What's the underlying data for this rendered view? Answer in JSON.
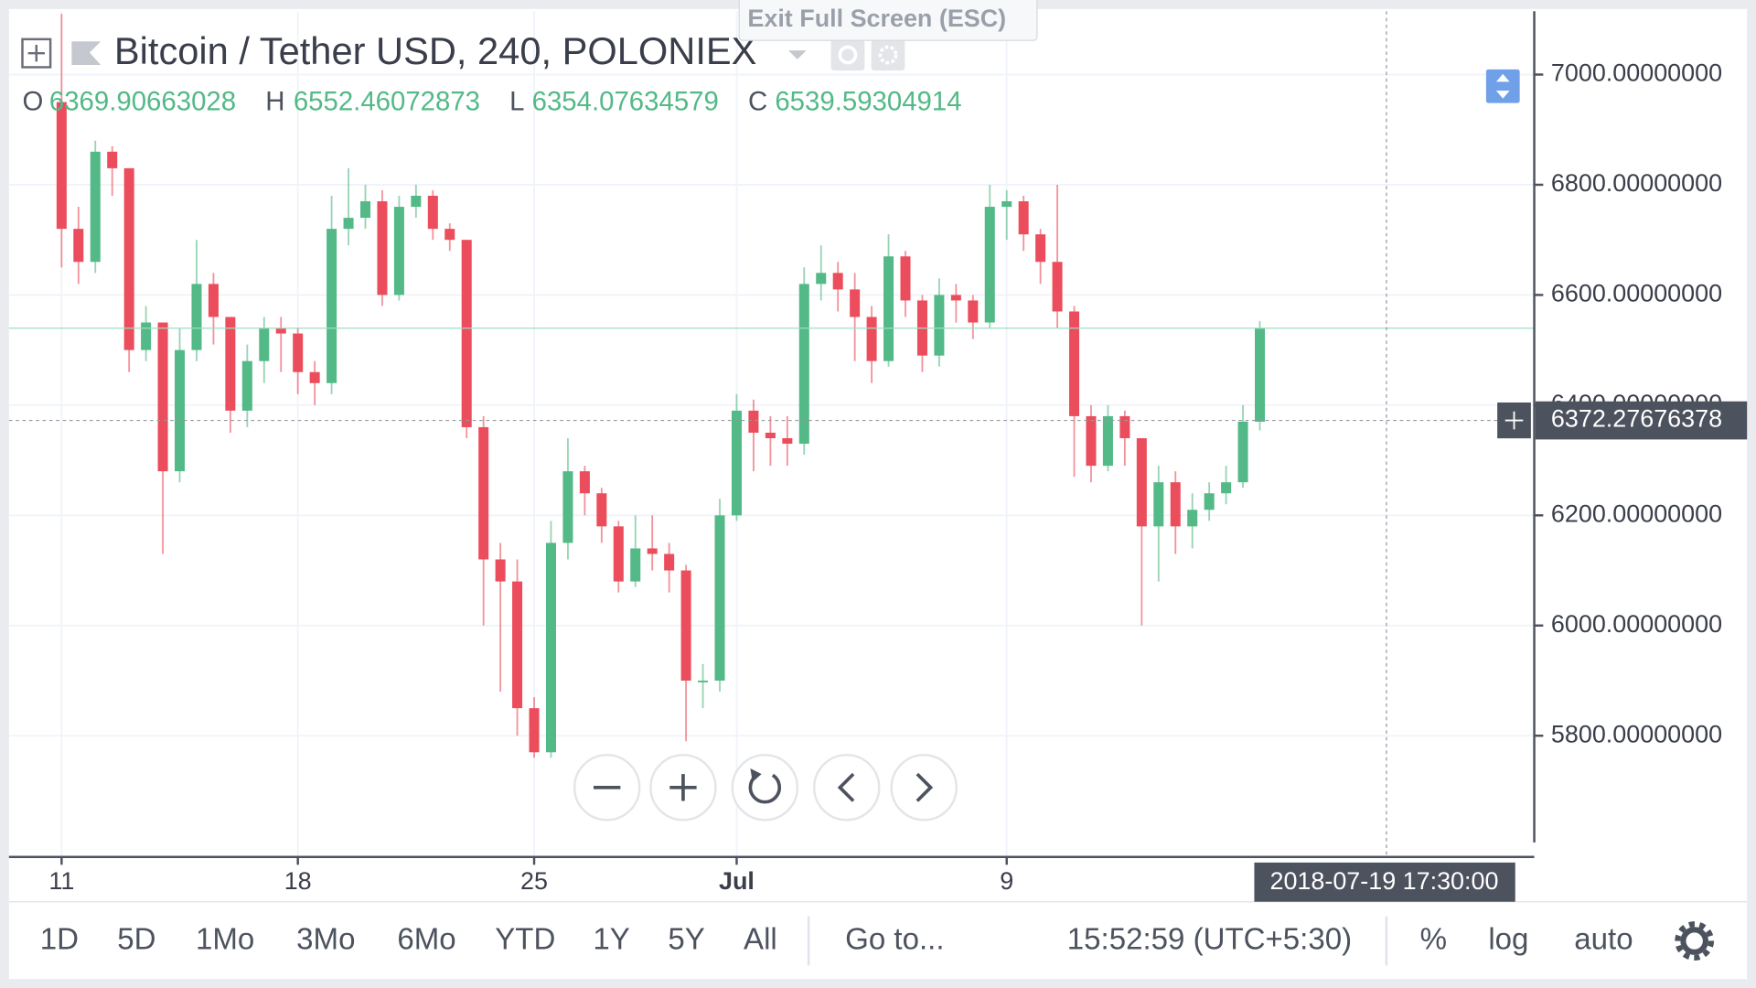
{
  "chart_data": {
    "type": "candlestick",
    "title": "Bitcoin / Tether USD, 240, POLONIEX",
    "ohlc_labels": [
      "O",
      "H",
      "L",
      "C"
    ],
    "categories": [
      "11",
      null,
      null,
      null,
      null,
      null,
      null,
      null,
      null,
      null,
      null,
      null,
      null,
      null,
      "18",
      null,
      null,
      null,
      null,
      null,
      null,
      null,
      null,
      null,
      null,
      null,
      null,
      null,
      "25",
      null,
      null,
      null,
      null,
      null,
      null,
      null,
      null,
      null,
      null,
      null,
      "Jul",
      null,
      null,
      null,
      null,
      null,
      null,
      null,
      null,
      null,
      null,
      null,
      null,
      null,
      null,
      null,
      "9",
      null,
      null,
      null,
      null,
      null,
      null,
      null,
      null,
      null,
      null,
      null,
      null,
      null,
      null,
      null
    ],
    "open": [
      6950,
      6720,
      6660,
      6860,
      6830,
      6500,
      6550,
      6280,
      6500,
      6620,
      6560,
      6390,
      6480,
      6540,
      6530,
      6460,
      6440,
      6720,
      6740,
      6770,
      6600,
      6760,
      6780,
      6720,
      6700,
      6360,
      6120,
      6080,
      5850,
      5770,
      6150,
      6280,
      6240,
      6180,
      6080,
      6140,
      6130,
      6100,
      5900,
      5900,
      6200,
      6390,
      6350,
      6340,
      6330,
      6620,
      6640,
      6610,
      6560,
      6480,
      6670,
      6590,
      6490,
      6600,
      6590,
      6550,
      6760,
      6770,
      6710,
      6660,
      6570,
      6380,
      6290,
      6380,
      6340,
      6180,
      6260,
      6180,
      6210,
      6240,
      6260,
      6369.90663028
    ],
    "high": [
      7110,
      6760,
      6880,
      6870,
      6830,
      6580,
      6550,
      6540,
      6700,
      6640,
      6560,
      6510,
      6560,
      6560,
      6540,
      6480,
      6780,
      6830,
      6800,
      6790,
      6780,
      6800,
      6790,
      6730,
      6700,
      6380,
      6150,
      6120,
      5870,
      6190,
      6340,
      6290,
      6250,
      6190,
      6200,
      6200,
      6150,
      6110,
      5930,
      6230,
      6420,
      6410,
      6380,
      6380,
      6650,
      6690,
      6660,
      6640,
      6580,
      6710,
      6680,
      6600,
      6630,
      6620,
      6600,
      6800,
      6790,
      6780,
      6720,
      6800,
      6580,
      6400,
      6400,
      6390,
      6340,
      6290,
      6280,
      6240,
      6260,
      6290,
      6400,
      6552.46072873
    ],
    "low": [
      6650,
      6620,
      6640,
      6780,
      6460,
      6480,
      6130,
      6260,
      6480,
      6510,
      6350,
      6360,
      6440,
      6460,
      6420,
      6400,
      6420,
      6690,
      6720,
      6580,
      6590,
      6740,
      6700,
      6680,
      6340,
      6000,
      5880,
      5800,
      5760,
      5760,
      6120,
      6200,
      6150,
      6060,
      6070,
      6100,
      6060,
      5790,
      5850,
      5880,
      6190,
      6280,
      6290,
      6290,
      6310,
      6590,
      6570,
      6480,
      6440,
      6470,
      6560,
      6460,
      6470,
      6550,
      6520,
      6540,
      6700,
      6680,
      6620,
      6540,
      6270,
      6260,
      6280,
      6290,
      6000,
      6080,
      6130,
      6140,
      6190,
      6220,
      6250,
      6354.07634579
    ],
    "close": [
      6720,
      6660,
      6860,
      6830,
      6500,
      6550,
      6280,
      6500,
      6620,
      6560,
      6390,
      6480,
      6540,
      6530,
      6460,
      6440,
      6720,
      6740,
      6770,
      6600,
      6760,
      6780,
      6720,
      6700,
      6360,
      6120,
      6080,
      5850,
      5770,
      6150,
      6280,
      6240,
      6180,
      6080,
      6140,
      6130,
      6100,
      5900,
      5900,
      6200,
      6390,
      6350,
      6340,
      6330,
      6620,
      6640,
      6610,
      6560,
      6480,
      6670,
      6590,
      6490,
      6600,
      6590,
      6550,
      6760,
      6770,
      6710,
      6660,
      6570,
      6380,
      6290,
      6380,
      6340,
      6180,
      6260,
      6180,
      6210,
      6240,
      6260,
      6370,
      6539.59304914
    ],
    "up_color": "#53b987",
    "down_color": "#eb4d5c",
    "ylim": [
      5580,
      7115
    ],
    "yticks": [
      {
        "value": 5800,
        "label": "5800.00000000"
      },
      {
        "value": 6000,
        "label": "6000.00000000"
      },
      {
        "value": 6200,
        "label": "6200.00000000"
      },
      {
        "value": 6400,
        "label": "6400.00000000"
      },
      {
        "value": 6600,
        "label": "6600.00000000"
      },
      {
        "value": 6800,
        "label": "6800.00000000"
      },
      {
        "value": 7000,
        "label": "7000.00000000"
      }
    ],
    "grid": true,
    "crosshair": {
      "price": 6372.27676378,
      "time": "2018-07-19 17:30:00"
    }
  },
  "fullscreen_hint": "Exit Full Screen (ESC)",
  "toolbar": {
    "ranges": [
      "1D",
      "5D",
      "1Mo",
      "3Mo",
      "6Mo",
      "YTD",
      "1Y",
      "5Y",
      "All"
    ],
    "goto": "Go to...",
    "clock": "15:52:59 (UTC+5:30)",
    "options": [
      "%",
      "log",
      "auto"
    ]
  }
}
